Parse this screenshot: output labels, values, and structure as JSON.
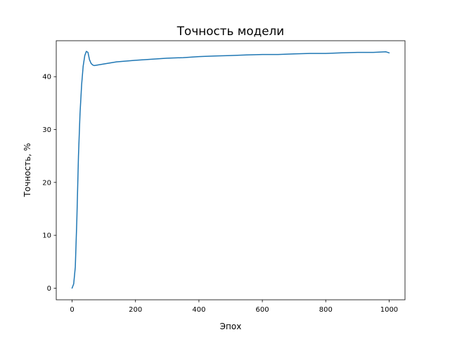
{
  "chart_data": {
    "type": "line",
    "title": "Точность модели",
    "xlabel": "Эпох",
    "ylabel": "Точность, %",
    "xlim": [
      -50,
      1050
    ],
    "ylim": [
      -2.2,
      46.8
    ],
    "xticks": [
      0,
      200,
      400,
      600,
      800,
      1000
    ],
    "yticks": [
      0,
      10,
      20,
      30,
      40
    ],
    "xtick_labels": [
      "0",
      "200",
      "400",
      "600",
      "800",
      "1000"
    ],
    "ytick_labels": [
      "0",
      "10",
      "20",
      "30",
      "40"
    ],
    "grid": false,
    "line_color": "#1f77b4",
    "series": [
      {
        "x": [
          0,
          5,
          10,
          15,
          20,
          25,
          30,
          35,
          40,
          45,
          50,
          55,
          60,
          65,
          70,
          80,
          90,
          100,
          120,
          140,
          160,
          180,
          200,
          250,
          300,
          350,
          400,
          450,
          500,
          550,
          600,
          650,
          700,
          750,
          800,
          850,
          900,
          950,
          990,
          1000
        ],
        "y": [
          0,
          0.8,
          4,
          13,
          25,
          33,
          38.5,
          42,
          44,
          44.8,
          44.6,
          43.2,
          42.5,
          42.2,
          42.1,
          42.2,
          42.3,
          42.4,
          42.6,
          42.8,
          42.9,
          43.0,
          43.1,
          43.3,
          43.5,
          43.6,
          43.8,
          43.9,
          44.0,
          44.1,
          44.2,
          44.2,
          44.3,
          44.4,
          44.4,
          44.5,
          44.6,
          44.6,
          44.7,
          44.5
        ]
      }
    ]
  }
}
